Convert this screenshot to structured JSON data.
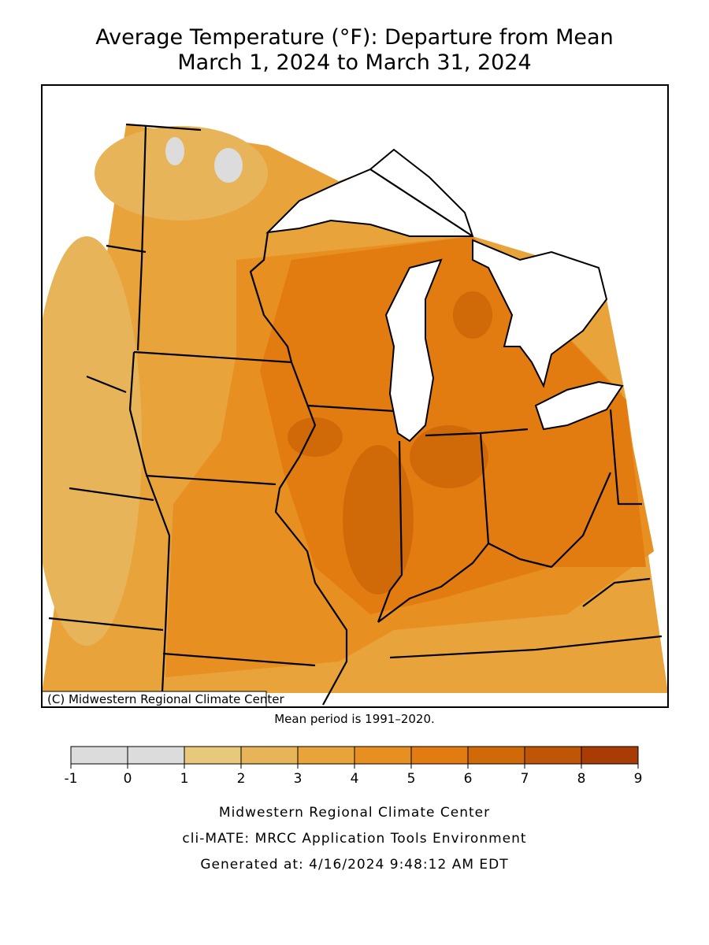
{
  "title": [
    "Average Temperature (°F): Departure from Mean",
    "March 1, 2024 to March 31, 2024"
  ],
  "map": {
    "credit": "(C) Midwestern Regional Climate Center"
  },
  "note": "Mean period is 1991–2020.",
  "legend": {
    "ticks": [
      -1,
      0,
      1,
      2,
      3,
      4,
      5,
      6,
      7,
      8,
      9
    ],
    "colors": [
      "#dcdcdc",
      "#dcdcdc",
      "#e8c87a",
      "#e8b45a",
      "#e8a33a",
      "#e88f22",
      "#e27b10",
      "#d06a08",
      "#bf5606",
      "#a83c04"
    ]
  },
  "footer": [
    "Midwestern Regional Climate Center",
    "cli-MATE: MRCC Application Tools Environment",
    "Generated at: 4/16/2024 9:48:12 AM EDT"
  ]
}
